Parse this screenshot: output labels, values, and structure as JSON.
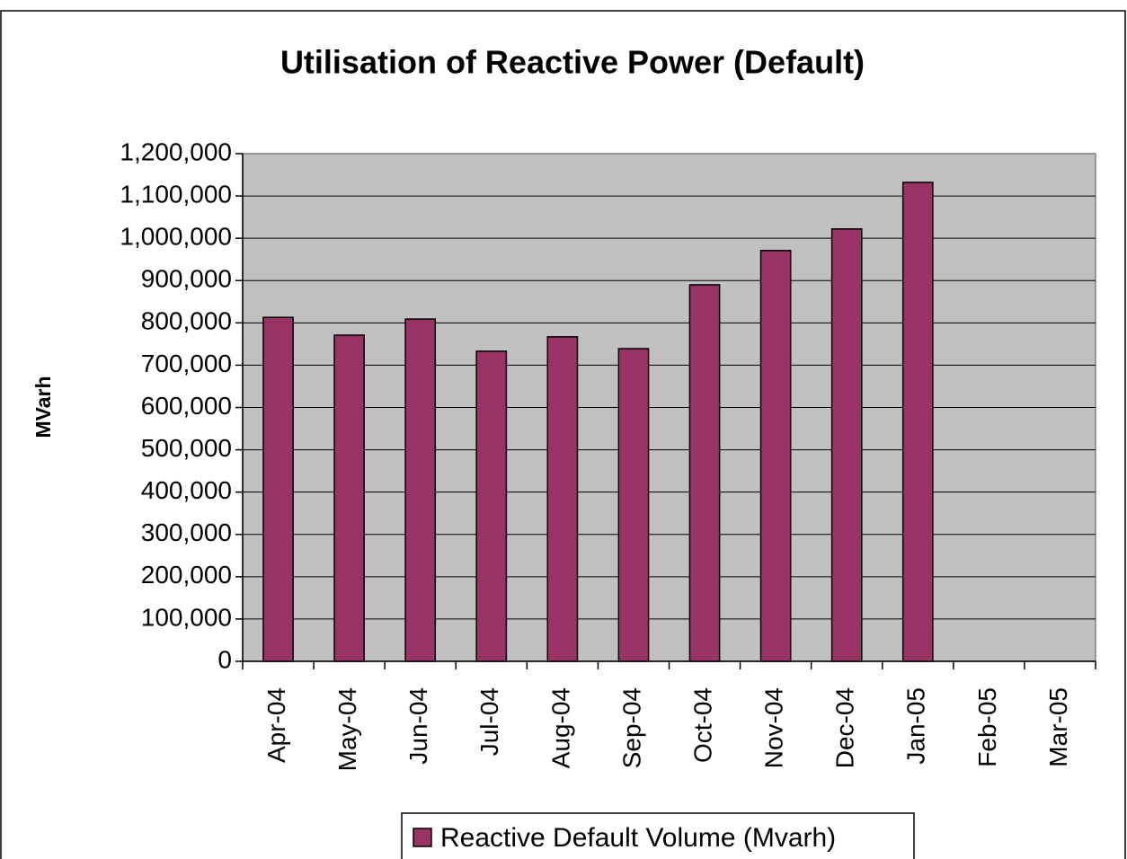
{
  "chart_data": {
    "type": "bar",
    "title": "Utilisation of Reactive Power (Default)",
    "y_label": "MVarh",
    "categories": [
      "Apr-04",
      "May-04",
      "Jun-04",
      "Jul-04",
      "Aug-04",
      "Sep-04",
      "Oct-04",
      "Nov-04",
      "Dec-04",
      "Jan-05",
      "Feb-05",
      "Mar-05"
    ],
    "series": [
      {
        "name": "Reactive Default Volume (Mvarh)",
        "color": "#993366",
        "values": [
          813000,
          771000,
          809000,
          733000,
          767000,
          739000,
          890000,
          971000,
          1022000,
          1132000,
          null,
          null
        ]
      }
    ],
    "ylim": [
      0,
      1200000
    ],
    "yticks": [
      0,
      {
        "value": 100000,
        "label": "100,000"
      },
      {
        "value": 200000,
        "label": "200,000"
      },
      {
        "value": 300000,
        "label": "300,000"
      },
      {
        "value": 400000,
        "label": "400,000"
      },
      {
        "value": 500000,
        "label": "500,000"
      },
      {
        "value": 600000,
        "label": "600,000"
      },
      {
        "value": 700000,
        "label": "700,000"
      },
      {
        "value": 800000,
        "label": "800,000"
      },
      {
        "value": 900000,
        "label": "900,000"
      },
      {
        "value": 1000000,
        "label": "1,000,000"
      },
      {
        "value": 1100000,
        "label": "1,100,000"
      },
      {
        "value": 1200000,
        "label": "1,200,000"
      }
    ],
    "grid": true,
    "legend": "bottom"
  }
}
